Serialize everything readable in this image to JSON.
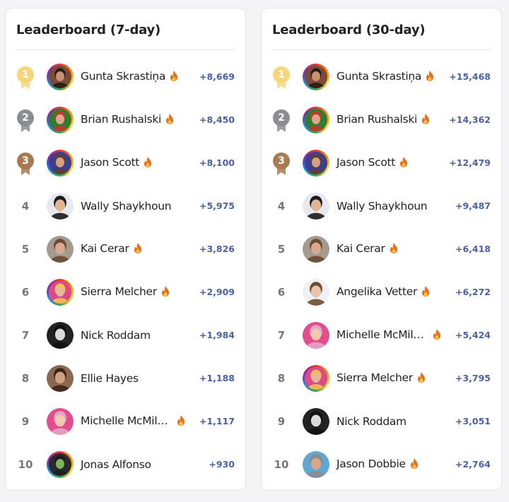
{
  "boards": [
    {
      "title": "Leaderboard (7-day)",
      "rows": [
        {
          "rank": "1",
          "name": "Gunta Skrastiņa",
          "fire": true,
          "score": "+8,669",
          "medal": "gold",
          "ring": "rainbow",
          "skin": "#c9906e",
          "hair": "#2a1a12",
          "bg": "#7a4a3a"
        },
        {
          "rank": "2",
          "name": "Brian Rushalski",
          "fire": true,
          "score": "+8,450",
          "medal": "silver",
          "ring": "rainbow",
          "skin": "#e0a58a",
          "hair": "#c0392b",
          "bg": "#2e7d32"
        },
        {
          "rank": "3",
          "name": "Jason Scott",
          "fire": true,
          "score": "+8,100",
          "medal": "bronze",
          "ring": "rainbow",
          "skin": "#d9a07c",
          "hair": "#5d4030",
          "bg": "#3b3f8f"
        },
        {
          "rank": "4",
          "name": "Wally Shaykhoun",
          "fire": false,
          "score": "+5,975",
          "medal": "",
          "ring": "",
          "skin": "#e2b595",
          "hair": "#1a1a1a",
          "bg": "#e6e9ee"
        },
        {
          "rank": "5",
          "name": "Kai Cerar",
          "fire": true,
          "score": "+3,826",
          "medal": "",
          "ring": "",
          "skin": "#d8a98c",
          "hair": "#6b4a34",
          "bg": "#a59a90"
        },
        {
          "rank": "6",
          "name": "Sierra Melcher",
          "fire": true,
          "score": "+2,909",
          "medal": "",
          "ring": "rainbow",
          "skin": "#e6b79a",
          "hair": "#f2c14e",
          "bg": "#d94b8a"
        },
        {
          "rank": "7",
          "name": "Nick Roddam",
          "fire": false,
          "score": "+1,984",
          "medal": "",
          "ring": "",
          "skin": "#d9d9d9",
          "hair": "#111111",
          "bg": "#222222"
        },
        {
          "rank": "8",
          "name": "Ellie Hayes",
          "fire": false,
          "score": "+1,188",
          "medal": "",
          "ring": "",
          "skin": "#d2a080",
          "hair": "#3b2418",
          "bg": "#8a6a4e"
        },
        {
          "rank": "9",
          "name": "Michelle McMil…",
          "fire": true,
          "score": "+1,117",
          "medal": "",
          "ring": "",
          "skin": "#f0c9b0",
          "hair": "#e3a7c3",
          "bg": "#e24d8e"
        },
        {
          "rank": "10",
          "name": "Jonas Alfonso",
          "fire": false,
          "score": "+930",
          "medal": "",
          "ring": "rainbow",
          "skin": "#7fb35c",
          "hair": "#1d1d1d",
          "bg": "#2a2a2a"
        }
      ]
    },
    {
      "title": "Leaderboard (30-day)",
      "rows": [
        {
          "rank": "1",
          "name": "Gunta Skrastiņa",
          "fire": true,
          "score": "+15,468",
          "medal": "gold",
          "ring": "rainbow",
          "skin": "#c9906e",
          "hair": "#2a1a12",
          "bg": "#7a4a3a"
        },
        {
          "rank": "2",
          "name": "Brian Rushalski",
          "fire": true,
          "score": "+14,362",
          "medal": "silver",
          "ring": "rainbow",
          "skin": "#e0a58a",
          "hair": "#c0392b",
          "bg": "#2e7d32"
        },
        {
          "rank": "3",
          "name": "Jason Scott",
          "fire": true,
          "score": "+12,479",
          "medal": "bronze",
          "ring": "rainbow",
          "skin": "#d9a07c",
          "hair": "#5d4030",
          "bg": "#3b3f8f"
        },
        {
          "rank": "4",
          "name": "Wally Shaykhoun",
          "fire": false,
          "score": "+9,487",
          "medal": "",
          "ring": "",
          "skin": "#e2b595",
          "hair": "#1a1a1a",
          "bg": "#e6e9ee"
        },
        {
          "rank": "5",
          "name": "Kai Cerar",
          "fire": true,
          "score": "+6,418",
          "medal": "",
          "ring": "",
          "skin": "#d8a98c",
          "hair": "#6b4a34",
          "bg": "#a59a90"
        },
        {
          "rank": "6",
          "name": "Angelika Vetter",
          "fire": true,
          "score": "+6,272",
          "medal": "",
          "ring": "",
          "skin": "#e9c3a8",
          "hair": "#6e4a2e",
          "bg": "#eef0f3"
        },
        {
          "rank": "7",
          "name": "Michelle McMil…",
          "fire": true,
          "score": "+5,424",
          "medal": "",
          "ring": "",
          "skin": "#f0c9b0",
          "hair": "#e3a7c3",
          "bg": "#e24d8e"
        },
        {
          "rank": "8",
          "name": "Sierra Melcher",
          "fire": true,
          "score": "+3,795",
          "medal": "",
          "ring": "rainbow",
          "skin": "#e6b79a",
          "hair": "#f2c14e",
          "bg": "#d94b8a"
        },
        {
          "rank": "9",
          "name": "Nick Roddam",
          "fire": false,
          "score": "+3,051",
          "medal": "",
          "ring": "",
          "skin": "#d9d9d9",
          "hair": "#111111",
          "bg": "#222222"
        },
        {
          "rank": "10",
          "name": "Jason Dobbie",
          "fire": true,
          "score": "+2,764",
          "medal": "",
          "ring": "",
          "skin": "#d7a98a",
          "hair": "#8b8b8b",
          "bg": "#5fa8d3"
        }
      ]
    }
  ],
  "colors": {
    "gold": "#f7d57a",
    "silver": "#8a8d92",
    "bronze": "#a87a52",
    "score": "#4a5fa8",
    "fire": "#f26a1b"
  },
  "icons": {
    "medal": "medal-icon",
    "fire": "fire-icon"
  }
}
